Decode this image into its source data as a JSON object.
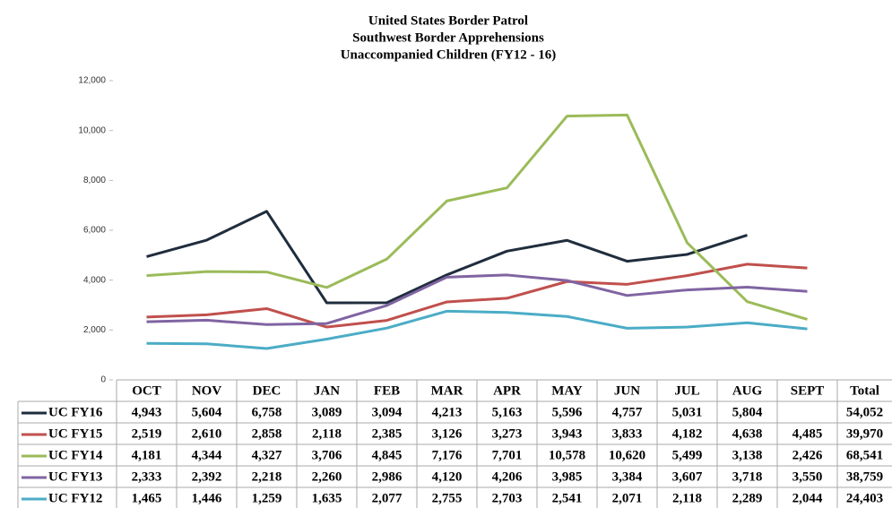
{
  "chart_data": {
    "type": "line",
    "title": [
      "United States Border Patrol",
      "Southwest Border Apprehensions",
      "Unaccompanied Children (FY12 - 16)"
    ],
    "categories": [
      "OCT",
      "NOV",
      "DEC",
      "JAN",
      "FEB",
      "MAR",
      "APR",
      "MAY",
      "JUN",
      "JUL",
      "AUG",
      "SEPT"
    ],
    "total_header": "Total",
    "ylim": [
      0,
      12000
    ],
    "yticks": [
      0,
      {
        "value": 2000,
        "label": "2,000"
      },
      {
        "value": 4000,
        "label": "4,000"
      },
      {
        "value": 6000,
        "label": "6,000"
      },
      {
        "value": 8000,
        "label": "8,000"
      },
      {
        "value": 10000,
        "label": "10,000"
      },
      {
        "value": 12000,
        "label": "12,000"
      }
    ],
    "series": [
      {
        "name": "UC FY16",
        "color": "#1f2d3d",
        "values": [
          4943,
          5604,
          6758,
          3089,
          3094,
          4213,
          5163,
          5596,
          4757,
          5031,
          5804,
          null
        ],
        "value_labels": [
          "4,943",
          "5,604",
          "6,758",
          "3,089",
          "3,094",
          "4,213",
          "5,163",
          "5,596",
          "4,757",
          "5,031",
          "5,804",
          null
        ],
        "total": {
          "value": 54052,
          "label": "54,052"
        }
      },
      {
        "name": "UC FY15",
        "color": "#c0504d",
        "values": [
          2519,
          2610,
          2858,
          2118,
          2385,
          3126,
          3273,
          3943,
          3833,
          4182,
          4638,
          4485
        ],
        "value_labels": [
          "2,519",
          "2,610",
          "2,858",
          "2,118",
          "2,385",
          "3,126",
          "3,273",
          "3,943",
          "3,833",
          "4,182",
          "4,638",
          "4,485"
        ],
        "total": {
          "value": 39970,
          "label": "39,970"
        }
      },
      {
        "name": "UC FY14",
        "color": "#9bbb59",
        "values": [
          4181,
          4344,
          4327,
          3706,
          4845,
          7176,
          7701,
          10578,
          10620,
          5499,
          3138,
          2426
        ],
        "value_labels": [
          "4,181",
          "4,344",
          "4,327",
          "3,706",
          "4,845",
          "7,176",
          "7,701",
          "10,578",
          "10,620",
          "5,499",
          "3,138",
          "2,426"
        ],
        "total": {
          "value": 68541,
          "label": "68,541"
        }
      },
      {
        "name": "UC FY13",
        "color": "#8064a2",
        "values": [
          2333,
          2392,
          2218,
          2260,
          2986,
          4120,
          4206,
          3985,
          3384,
          3607,
          3718,
          3550
        ],
        "value_labels": [
          "2,333",
          "2,392",
          "2,218",
          "2,260",
          "2,986",
          "4,120",
          "4,206",
          "3,985",
          "3,384",
          "3,607",
          "3,718",
          "3,550"
        ],
        "total": {
          "value": 38759,
          "label": "38,759"
        }
      },
      {
        "name": "UC FY12",
        "color": "#4bacc6",
        "values": [
          1465,
          1446,
          1259,
          1635,
          2077,
          2755,
          2703,
          2541,
          2071,
          2118,
          2289,
          2044
        ],
        "value_labels": [
          "1,465",
          "1,446",
          "1,259",
          "1,635",
          "2,077",
          "2,755",
          "2,703",
          "2,541",
          "2,071",
          "2,118",
          "2,289",
          "2,044"
        ],
        "total": {
          "value": 24403,
          "label": "24,403"
        }
      }
    ]
  }
}
